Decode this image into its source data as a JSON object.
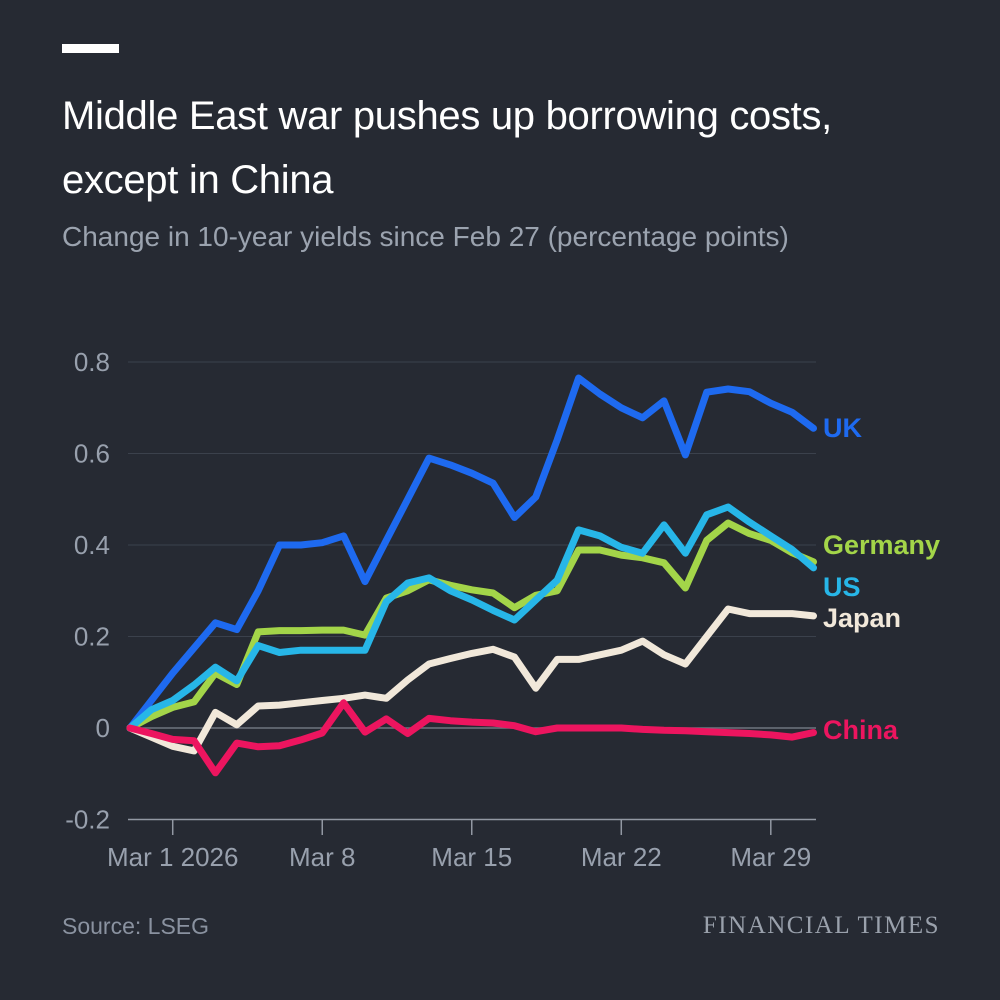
{
  "header": {
    "kicker_color": "#ffffff"
  },
  "footer": {
    "source": "Source: LSEG",
    "brand": "FINANCIAL TIMES"
  },
  "colors": {
    "background": "#262a33",
    "title": "#ffffff",
    "subtitle": "#9ba3af",
    "axis_label": "#98a0ad",
    "gridline": "#3b414c",
    "zero_line": "#6e7480",
    "axis_line": "#9298a3"
  },
  "chart_data": {
    "type": "line",
    "title_lines": [
      "Middle East war pushes up borrowing costs,",
      "except in China"
    ],
    "subtitle": "Change in 10-year yields since Feb 27 (percentage points)",
    "ylabel": "",
    "xlabel": "",
    "ylim": [
      -0.2,
      0.8
    ],
    "grid": true,
    "legend_position": "right-of-line-ends",
    "y_ticks": [
      0.8,
      0.6,
      0.4,
      0.2,
      0,
      -0.2
    ],
    "y_tick_labels": [
      "0.8",
      "0.6",
      "0.4",
      "0.2",
      "0",
      "-0.2"
    ],
    "x_tick_labels": [
      "Mar 1 2026",
      "Mar 8",
      "Mar 15",
      "Mar 22",
      "Mar 29"
    ],
    "x_tick_days": [
      2,
      9,
      16,
      23,
      30
    ],
    "x": [
      "Feb 27",
      "Feb 28",
      "Mar 1",
      "Mar 2",
      "Mar 3",
      "Mar 4",
      "Mar 5",
      "Mar 6",
      "Mar 7",
      "Mar 8",
      "Mar 9",
      "Mar 10",
      "Mar 11",
      "Mar 12",
      "Mar 13",
      "Mar 14",
      "Mar 15",
      "Mar 16",
      "Mar 17",
      "Mar 18",
      "Mar 19",
      "Mar 20",
      "Mar 21",
      "Mar 22",
      "Mar 23",
      "Mar 24",
      "Mar 25",
      "Mar 26",
      "Mar 27",
      "Mar 28",
      "Mar 29",
      "Mar 30",
      "Mar 31"
    ],
    "series": [
      {
        "name": "UK",
        "color": "#1e6af0",
        "values": [
          0,
          0.06,
          0.12,
          0.175,
          0.23,
          0.215,
          0.3,
          0.4,
          0.4,
          0.405,
          0.42,
          0.32,
          0.41,
          0.5,
          0.59,
          0.575,
          0.557,
          0.535,
          0.46,
          0.505,
          0.63,
          0.765,
          0.73,
          0.7,
          0.678,
          0.715,
          0.597,
          0.734,
          0.741,
          0.735,
          0.71,
          0.69,
          0.655
        ]
      },
      {
        "name": "Germany",
        "color": "#a3d549",
        "values": [
          0,
          0.025,
          0.045,
          0.057,
          0.12,
          0.095,
          0.21,
          0.213,
          0.213,
          0.214,
          0.214,
          0.203,
          0.284,
          0.3,
          0.324,
          0.312,
          0.302,
          0.295,
          0.263,
          0.29,
          0.3,
          0.389,
          0.389,
          0.378,
          0.372,
          0.361,
          0.306,
          0.41,
          0.448,
          0.425,
          0.41,
          0.383,
          0.363
        ]
      },
      {
        "name": "US",
        "color": "#27b6e8",
        "values": [
          0,
          0.04,
          0.06,
          0.094,
          0.133,
          0.103,
          0.18,
          0.165,
          0.17,
          0.17,
          0.17,
          0.17,
          0.276,
          0.317,
          0.328,
          0.3,
          0.28,
          0.257,
          0.236,
          0.28,
          0.323,
          0.433,
          0.42,
          0.395,
          0.382,
          0.444,
          0.382,
          0.466,
          0.483,
          0.45,
          0.42,
          0.39,
          0.35
        ]
      },
      {
        "name": "Japan",
        "color": "#f1e8da",
        "values": [
          0,
          -0.02,
          -0.04,
          -0.05,
          0.034,
          0.007,
          0.048,
          0.05,
          0.055,
          0.06,
          0.065,
          0.072,
          0.065,
          0.105,
          0.14,
          0.152,
          0.163,
          0.172,
          0.155,
          0.087,
          0.15,
          0.15,
          0.16,
          0.17,
          0.19,
          0.16,
          0.14,
          0.2,
          0.26,
          0.25,
          0.25,
          0.25,
          0.245
        ]
      },
      {
        "name": "China",
        "color": "#ec155f",
        "values": [
          0,
          -0.012,
          -0.025,
          -0.028,
          -0.098,
          -0.033,
          -0.041,
          -0.039,
          -0.026,
          -0.011,
          0.055,
          -0.009,
          0.02,
          -0.012,
          0.021,
          0.016,
          0.013,
          0.011,
          0.005,
          -0.008,
          0,
          0,
          0,
          0,
          -0.003,
          -0.005,
          -0.006,
          -0.008,
          -0.01,
          -0.012,
          -0.015,
          -0.02,
          -0.01
        ]
      }
    ]
  }
}
